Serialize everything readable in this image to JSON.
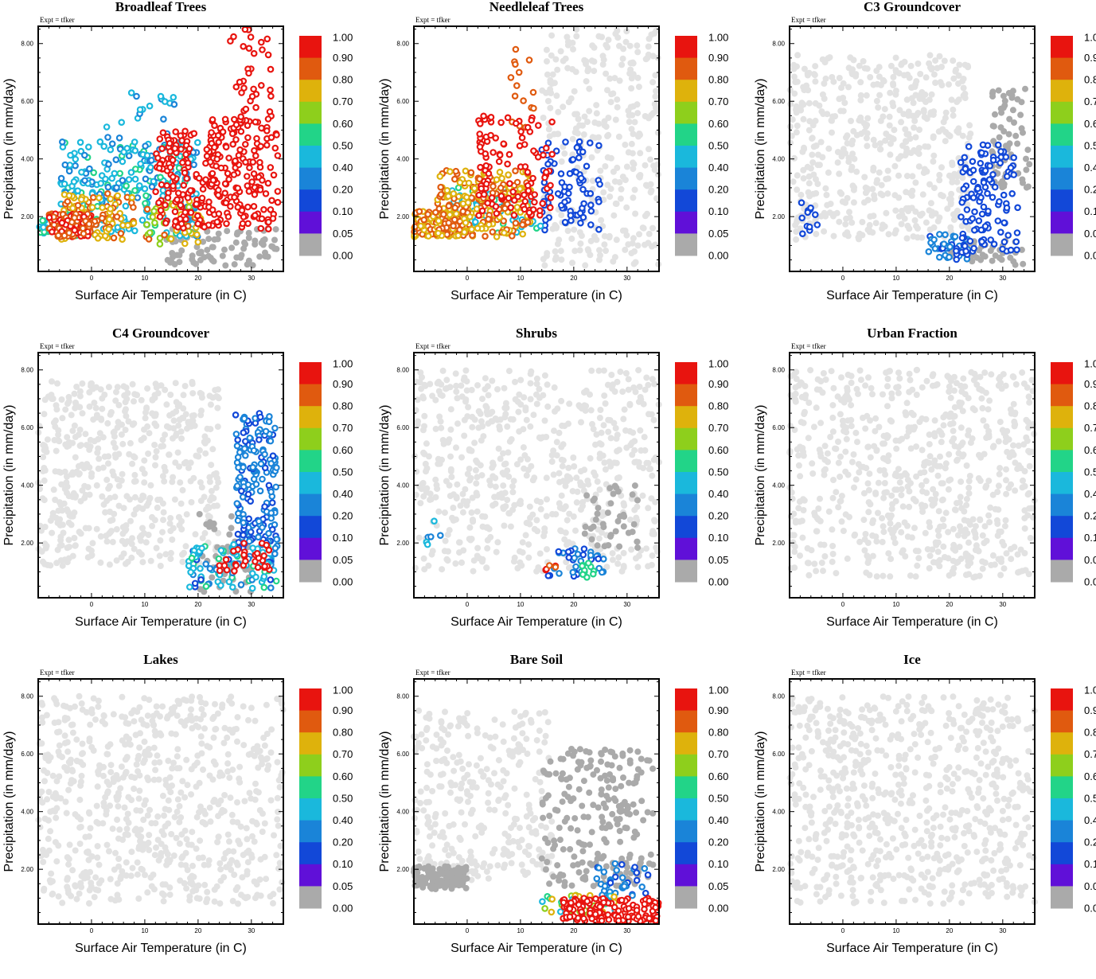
{
  "figure": {
    "panels": [
      {
        "title": "Broadleaf Trees",
        "expt": "Expt = tfker",
        "xlabel": "Surface Air Temperature (in C)",
        "ylabel": "Precipitation (in mm/day)"
      },
      {
        "title": "Needleleaf Trees",
        "expt": "Expt = tfker",
        "xlabel": "Surface Air Temperature (in C)",
        "ylabel": "Precipitation (in mm/day)"
      },
      {
        "title": "C3 Groundcover",
        "expt": "Expt = tfker",
        "xlabel": "Surface Air Temperature (in C)",
        "ylabel": "Precipitation (in mm/day)"
      },
      {
        "title": "C4 Groundcover",
        "expt": "Expt = tfker",
        "xlabel": "Surface Air Temperature (in C)",
        "ylabel": "Precipitation (in mm/day)"
      },
      {
        "title": "Shrubs",
        "expt": "Expt = tfker",
        "xlabel": "Surface Air Temperature (in C)",
        "ylabel": "Precipitation (in mm/day)"
      },
      {
        "title": "Urban Fraction",
        "expt": "Expt = tfker",
        "xlabel": "Surface Air Temperature (in C)",
        "ylabel": "Precipitation (in mm/day)"
      },
      {
        "title": "Lakes",
        "expt": "Expt = tfker",
        "xlabel": "Surface Air Temperature (in C)",
        "ylabel": "Precipitation (in mm/day)"
      },
      {
        "title": "Bare Soil",
        "expt": "Expt = tfker",
        "xlabel": "Surface Air Temperature (in C)",
        "ylabel": "Precipitation (in mm/day)"
      },
      {
        "title": "Ice",
        "expt": "Expt = tfker",
        "xlabel": "Surface Air Temperature (in C)",
        "ylabel": "Precipitation (in mm/day)"
      }
    ],
    "colorbar": {
      "labels": [
        "1.00",
        "0.90",
        "0.80",
        "0.70",
        "0.60",
        "0.50",
        "0.40",
        "0.20",
        "0.10",
        "0.05",
        "0.00"
      ],
      "colors": [
        "#e8140f",
        "#e05a0f",
        "#deb20c",
        "#8ecf1c",
        "#22d488",
        "#1ab8dc",
        "#1a84d8",
        "#1248d8",
        "#6010d8",
        "#aaaaaa"
      ],
      "background_point_color": "#e2e2e2",
      "zero_point_color": "#aaaaaa"
    }
  },
  "chart_data": [
    {
      "type": "scatter",
      "title": "Broadleaf Trees",
      "xlabel": "Surface Air Temperature (in C)",
      "ylabel": "Precipitation (in mm/day)",
      "xticks": [
        "0",
        "10",
        "20",
        "30"
      ],
      "yticks": [
        "2.00",
        "4.00",
        "6.00",
        "8.00"
      ],
      "xlim": [
        -10,
        36
      ],
      "ylim": [
        0.1,
        8.6
      ],
      "color_var": "Broadleaf Trees fraction",
      "clusters": [
        {
          "x": [
            -8,
            0
          ],
          "y": [
            1.3,
            2.1
          ],
          "n": 140,
          "v": [
            0.75,
            0.85
          ]
        },
        {
          "x": [
            -10,
            -5
          ],
          "y": [
            1.4,
            1.9
          ],
          "n": 30,
          "v": [
            0.3,
            0.45
          ]
        },
        {
          "x": [
            -6,
            8
          ],
          "y": [
            1.2,
            2.8
          ],
          "n": 110,
          "v": [
            0.65,
            0.75
          ]
        },
        {
          "x": [
            -6,
            20
          ],
          "y": [
            1.3,
            4.6
          ],
          "n": 260,
          "v": [
            0.15,
            0.45
          ]
        },
        {
          "x": [
            0,
            16
          ],
          "y": [
            3.0,
            6.4
          ],
          "n": 40,
          "v": [
            0.15,
            0.25
          ]
        },
        {
          "x": [
            10,
            21
          ],
          "y": [
            1.0,
            2.6
          ],
          "n": 50,
          "v": [
            0.5,
            0.75
          ]
        },
        {
          "x": [
            12,
            24
          ],
          "y": [
            1.6,
            5.0
          ],
          "n": 150,
          "v": [
            0.85,
            0.95
          ]
        },
        {
          "x": [
            22,
            35
          ],
          "y": [
            1.5,
            5.5
          ],
          "n": 160,
          "v": [
            0.8,
            0.95
          ]
        },
        {
          "x": [
            26,
            34
          ],
          "y": [
            4.5,
            8.5
          ],
          "n": 40,
          "v": [
            0.9,
            1.0
          ]
        },
        {
          "x": [
            14,
            35
          ],
          "y": [
            0.3,
            1.6
          ],
          "n": 90,
          "v": [
            0,
            0
          ]
        }
      ]
    },
    {
      "type": "scatter",
      "title": "Needleleaf Trees",
      "xlabel": "Surface Air Temperature (in C)",
      "ylabel": "Precipitation (in mm/day)",
      "xticks": [
        "0",
        "10",
        "20",
        "30"
      ],
      "yticks": [
        "2.00",
        "4.00",
        "6.00",
        "8.00"
      ],
      "xlim": [
        -10,
        36
      ],
      "ylim": [
        0.1,
        8.6
      ],
      "color_var": "Needleleaf Trees fraction",
      "clusters": [
        {
          "x": [
            -10,
            0
          ],
          "y": [
            1.3,
            2.2
          ],
          "n": 140,
          "v": [
            0.65,
            0.75
          ]
        },
        {
          "x": [
            -6,
            12
          ],
          "y": [
            1.3,
            3.6
          ],
          "n": 220,
          "v": [
            0.65,
            0.75
          ]
        },
        {
          "x": [
            -4,
            14
          ],
          "y": [
            1.4,
            3.0
          ],
          "n": 70,
          "v": [
            0.2,
            0.45
          ]
        },
        {
          "x": [
            2,
            16
          ],
          "y": [
            2.0,
            5.5
          ],
          "n": 110,
          "v": [
            0.8,
            0.9
          ]
        },
        {
          "x": [
            8,
            13
          ],
          "y": [
            5.0,
            7.8
          ],
          "n": 15,
          "v": [
            0.7,
            0.8
          ]
        },
        {
          "x": [
            14,
            25
          ],
          "y": [
            1.5,
            4.6
          ],
          "n": 80,
          "v": [
            0.05,
            0.1
          ]
        },
        {
          "x": [
            14,
            36
          ],
          "y": [
            0.3,
            8.5
          ],
          "n": 320,
          "v": [
            -1,
            -1
          ]
        }
      ]
    },
    {
      "type": "scatter",
      "title": "C3 Groundcover",
      "xlabel": "Surface Air Temperature (in C)",
      "ylabel": "Precipitation (in mm/day)",
      "xticks": [
        "0",
        "10",
        "20",
        "30"
      ],
      "yticks": [
        "2.00",
        "4.00",
        "6.00",
        "8.00"
      ],
      "xlim": [
        -10,
        36
      ],
      "ylim": [
        0.1,
        8.6
      ],
      "color_var": "C3 Groundcover fraction",
      "clusters": [
        {
          "x": [
            -10,
            24
          ],
          "y": [
            1.2,
            7.6
          ],
          "n": 520,
          "v": [
            -1,
            -1
          ]
        },
        {
          "x": [
            -8,
            -4
          ],
          "y": [
            1.4,
            2.7
          ],
          "n": 12,
          "v": [
            0.05,
            0.1
          ]
        },
        {
          "x": [
            16,
            24
          ],
          "y": [
            0.5,
            1.4
          ],
          "n": 45,
          "v": [
            0.05,
            0.2
          ]
        },
        {
          "x": [
            22,
            33
          ],
          "y": [
            0.8,
            4.5
          ],
          "n": 120,
          "v": [
            0.05,
            0.1
          ]
        },
        {
          "x": [
            28,
            35
          ],
          "y": [
            3.0,
            6.5
          ],
          "n": 70,
          "v": [
            0,
            0
          ]
        },
        {
          "x": [
            20,
            34
          ],
          "y": [
            0.3,
            1.2
          ],
          "n": 40,
          "v": [
            0,
            0
          ]
        }
      ]
    },
    {
      "type": "scatter",
      "title": "C4 Groundcover",
      "xlabel": "Surface Air Temperature (in C)",
      "ylabel": "Precipitation (in mm/day)",
      "xticks": [
        "0",
        "10",
        "20",
        "30"
      ],
      "yticks": [
        "2.00",
        "4.00",
        "6.00",
        "8.00"
      ],
      "xlim": [
        -10,
        36
      ],
      "ylim": [
        0.1,
        8.6
      ],
      "color_var": "C4 Groundcover fraction",
      "clusters": [
        {
          "x": [
            -10,
            24
          ],
          "y": [
            1.2,
            7.6
          ],
          "n": 520,
          "v": [
            -1,
            -1
          ]
        },
        {
          "x": [
            27,
            35
          ],
          "y": [
            1.8,
            6.5
          ],
          "n": 180,
          "v": [
            0.05,
            0.2
          ]
        },
        {
          "x": [
            18,
            35
          ],
          "y": [
            0.4,
            2.0
          ],
          "n": 100,
          "v": [
            0.05,
            0.5
          ]
        },
        {
          "x": [
            24,
            34
          ],
          "y": [
            1.0,
            2.0
          ],
          "n": 30,
          "v": [
            0.8,
            0.9
          ]
        },
        {
          "x": [
            20,
            30
          ],
          "y": [
            0.3,
            3.0
          ],
          "n": 60,
          "v": [
            0,
            0
          ]
        }
      ]
    },
    {
      "type": "scatter",
      "title": "Shrubs",
      "xlabel": "Surface Air Temperature (in C)",
      "ylabel": "Precipitation (in mm/day)",
      "xticks": [
        "0",
        "10",
        "20",
        "30"
      ],
      "yticks": [
        "2.00",
        "4.00",
        "6.00",
        "8.00"
      ],
      "xlim": [
        -10,
        36
      ],
      "ylim": [
        0.1,
        8.6
      ],
      "color_var": "Shrubs fraction",
      "clusters": [
        {
          "x": [
            -10,
            36
          ],
          "y": [
            1.0,
            8.0
          ],
          "n": 620,
          "v": [
            -1,
            -1
          ]
        },
        {
          "x": [
            -8,
            -5
          ],
          "y": [
            1.6,
            2.8
          ],
          "n": 6,
          "v": [
            0.1,
            0.4
          ]
        },
        {
          "x": [
            15,
            26
          ],
          "y": [
            0.8,
            1.8
          ],
          "n": 35,
          "v": [
            0.05,
            0.2
          ]
        },
        {
          "x": [
            21,
            24
          ],
          "y": [
            0.8,
            1.3
          ],
          "n": 10,
          "v": [
            0.4,
            0.5
          ]
        },
        {
          "x": [
            14,
            17
          ],
          "y": [
            1.0,
            1.3
          ],
          "n": 5,
          "v": [
            0.7,
            0.9
          ]
        },
        {
          "x": [
            22,
            32
          ],
          "y": [
            1.8,
            4.0
          ],
          "n": 40,
          "v": [
            0,
            0
          ]
        }
      ]
    },
    {
      "type": "scatter",
      "title": "Urban Fraction",
      "xlabel": "Surface Air Temperature (in C)",
      "ylabel": "Precipitation (in mm/day)",
      "xticks": [
        "0",
        "10",
        "20",
        "30"
      ],
      "yticks": [
        "2.00",
        "4.00",
        "6.00",
        "8.00"
      ],
      "xlim": [
        -10,
        36
      ],
      "ylim": [
        0.1,
        8.6
      ],
      "color_var": "Urban Fraction",
      "clusters": [
        {
          "x": [
            -10,
            36
          ],
          "y": [
            0.8,
            8.0
          ],
          "n": 700,
          "v": [
            -1,
            -1
          ]
        }
      ]
    },
    {
      "type": "scatter",
      "title": "Lakes",
      "xlabel": "Surface Air Temperature (in C)",
      "ylabel": "Precipitation (in mm/day)",
      "xticks": [
        "0",
        "10",
        "20",
        "30"
      ],
      "yticks": [
        "2.00",
        "4.00",
        "6.00",
        "8.00"
      ],
      "xlim": [
        -10,
        36
      ],
      "ylim": [
        0.1,
        8.6
      ],
      "color_var": "Lakes fraction",
      "clusters": [
        {
          "x": [
            -10,
            36
          ],
          "y": [
            0.8,
            8.0
          ],
          "n": 700,
          "v": [
            -1,
            -1
          ]
        }
      ]
    },
    {
      "type": "scatter",
      "title": "Bare Soil",
      "xlabel": "Surface Air Temperature (in C)",
      "ylabel": "Precipitation (in mm/day)",
      "xticks": [
        "0",
        "10",
        "20",
        "30"
      ],
      "yticks": [
        "2.00",
        "4.00",
        "6.00",
        "8.00"
      ],
      "xlim": [
        -10,
        36
      ],
      "ylim": [
        0.1,
        8.6
      ],
      "color_var": "Bare Soil fraction",
      "clusters": [
        {
          "x": [
            -10,
            16
          ],
          "y": [
            1.6,
            7.5
          ],
          "n": 300,
          "v": [
            -1,
            -1
          ]
        },
        {
          "x": [
            -10,
            0
          ],
          "y": [
            1.3,
            2.1
          ],
          "n": 150,
          "v": [
            0,
            0
          ]
        },
        {
          "x": [
            14,
            35
          ],
          "y": [
            1.4,
            6.2
          ],
          "n": 220,
          "v": [
            0,
            0
          ]
        },
        {
          "x": [
            24,
            34
          ],
          "y": [
            1.0,
            2.2
          ],
          "n": 40,
          "v": [
            0.05,
            0.2
          ]
        },
        {
          "x": [
            14,
            28
          ],
          "y": [
            0.5,
            1.1
          ],
          "n": 40,
          "v": [
            0.3,
            0.7
          ]
        },
        {
          "x": [
            18,
            36
          ],
          "y": [
            0.2,
            1.0
          ],
          "n": 140,
          "v": [
            0.9,
            1.0
          ]
        }
      ]
    },
    {
      "type": "scatter",
      "title": "Ice",
      "xlabel": "Surface Air Temperature (in C)",
      "ylabel": "Precipitation (in mm/day)",
      "xticks": [
        "0",
        "10",
        "20",
        "30"
      ],
      "yticks": [
        "2.00",
        "4.00",
        "6.00",
        "8.00"
      ],
      "xlim": [
        -10,
        36
      ],
      "ylim": [
        0.1,
        8.6
      ],
      "color_var": "Ice fraction",
      "clusters": [
        {
          "x": [
            -10,
            36
          ],
          "y": [
            0.8,
            8.0
          ],
          "n": 700,
          "v": [
            -1,
            -1
          ]
        }
      ]
    }
  ]
}
